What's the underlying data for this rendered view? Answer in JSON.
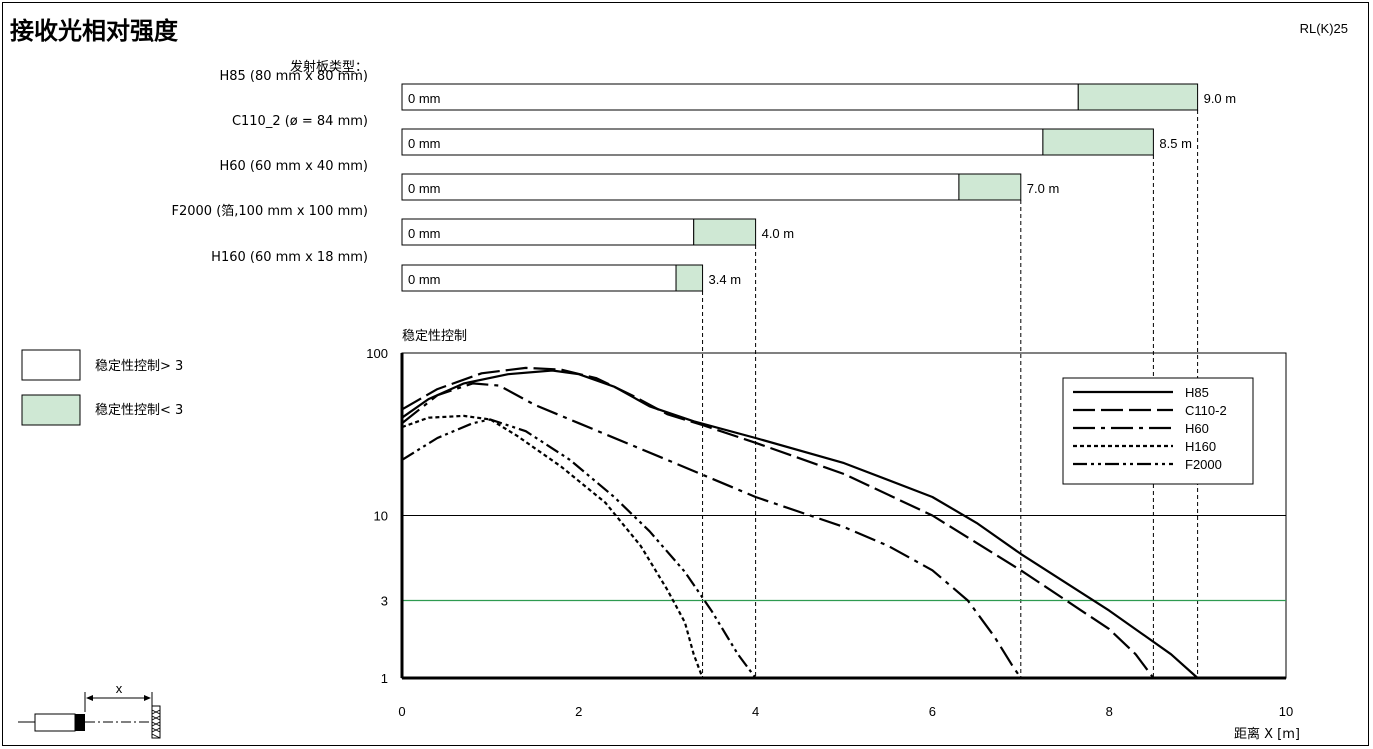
{
  "header": {
    "title": "接收光相对强度",
    "model": "RL(K)25"
  },
  "reflector_section": {
    "heading": "发射板类型："
  },
  "legend_boxes": {
    "items": [
      {
        "label": "稳定性控制> 3",
        "fill": "#ffffff"
      },
      {
        "label": "稳定性控制< 3",
        "fill": "#cfe8d4"
      }
    ]
  },
  "colors": {
    "green_band": "#cfe8d4",
    "threshold_line": "#2e9a50",
    "axis": "#000000"
  },
  "diagram": {
    "x_label": "x"
  },
  "chart_data": [
    {
      "type": "bar",
      "orientation": "horizontal",
      "categories": [
        "H85 (80 mm x 80 mm)",
        "C110_2 (ø = 84 mm)",
        "H60 (60 mm x 40 mm)",
        "F2000 (箔,100 mm x 100 mm)",
        "H160 (60 mm x 18 mm)"
      ],
      "start_label": "0 mm",
      "series": [
        {
          "values": [
            7.65,
            7.25,
            6.3,
            3.3,
            3.1
          ]
        },
        {
          "values": [
            1.35,
            1.25,
            0.7,
            0.7,
            0.3
          ]
        }
      ],
      "end_labels": [
        "9.0 m",
        "8.5 m",
        "7.0 m",
        "4.0 m",
        "3.4 m"
      ],
      "max_range": [
        9.0,
        8.5,
        7.0,
        4.0,
        3.4
      ],
      "xlim": [
        0,
        10
      ]
    },
    {
      "type": "line",
      "ylabel": "稳定性控制",
      "xlabel": "距离 X [m]",
      "xlim": [
        0,
        10
      ],
      "ylim": [
        1,
        100
      ],
      "y_scale": "log",
      "x_ticks": [
        0,
        2,
        4,
        6,
        8,
        10
      ],
      "y_ticks": [
        1,
        3,
        10,
        100
      ],
      "threshold_y": 3,
      "legend_position": "top-right",
      "series": [
        {
          "name": "H85",
          "style": "solid",
          "points": [
            [
              0,
              40
            ],
            [
              0.3,
              52
            ],
            [
              0.7,
              65
            ],
            [
              1.2,
              74
            ],
            [
              1.7,
              78
            ],
            [
              2.0,
              74
            ],
            [
              2.4,
              62
            ],
            [
              2.8,
              47
            ],
            [
              3.3,
              38
            ],
            [
              4.0,
              30
            ],
            [
              5.0,
              21
            ],
            [
              6.0,
              13
            ],
            [
              6.5,
              9
            ],
            [
              7.0,
              5.8
            ],
            [
              8.0,
              2.6
            ],
            [
              8.7,
              1.4
            ],
            [
              9.0,
              1.0
            ]
          ]
        },
        {
          "name": "C110-2",
          "style": "dashed",
          "points": [
            [
              0,
              45
            ],
            [
              0.4,
              60
            ],
            [
              0.9,
              75
            ],
            [
              1.4,
              81
            ],
            [
              1.8,
              79
            ],
            [
              2.2,
              70
            ],
            [
              2.6,
              55
            ],
            [
              3.0,
              42
            ],
            [
              3.4,
              36
            ],
            [
              4.0,
              28
            ],
            [
              5.0,
              18
            ],
            [
              6.0,
              10
            ],
            [
              7.0,
              4.6
            ],
            [
              8.0,
              2.0
            ],
            [
              8.3,
              1.4
            ],
            [
              8.5,
              1.0
            ]
          ]
        },
        {
          "name": "H60",
          "style": "dash-dot",
          "points": [
            [
              0,
              37
            ],
            [
              0.4,
              55
            ],
            [
              0.8,
              65
            ],
            [
              1.1,
              63
            ],
            [
              1.5,
              48
            ],
            [
              2.0,
              37
            ],
            [
              3.0,
              22
            ],
            [
              4.0,
              13
            ],
            [
              5.0,
              8.5
            ],
            [
              5.5,
              6.5
            ],
            [
              6.0,
              4.6
            ],
            [
              6.4,
              3.0
            ],
            [
              6.7,
              1.8
            ],
            [
              6.9,
              1.2
            ],
            [
              7.0,
              1.0
            ]
          ]
        },
        {
          "name": "H160",
          "style": "dotted",
          "points": [
            [
              0,
              35
            ],
            [
              0.3,
              40
            ],
            [
              0.7,
              41
            ],
            [
              1.0,
              39
            ],
            [
              1.3,
              31
            ],
            [
              1.8,
              20
            ],
            [
              2.3,
              12
            ],
            [
              2.7,
              6.5
            ],
            [
              3.0,
              3.5
            ],
            [
              3.2,
              2.2
            ],
            [
              3.3,
              1.4
            ],
            [
              3.4,
              1.0
            ]
          ]
        },
        {
          "name": "F2000",
          "style": "dash-dot-dot",
          "points": [
            [
              0,
              22
            ],
            [
              0.4,
              30
            ],
            [
              0.8,
              37
            ],
            [
              1.0,
              39
            ],
            [
              1.4,
              33
            ],
            [
              1.9,
              22
            ],
            [
              2.4,
              13
            ],
            [
              2.8,
              8
            ],
            [
              3.2,
              4.5
            ],
            [
              3.5,
              2.6
            ],
            [
              3.8,
              1.4
            ],
            [
              4.0,
              1.0
            ]
          ]
        }
      ]
    }
  ]
}
